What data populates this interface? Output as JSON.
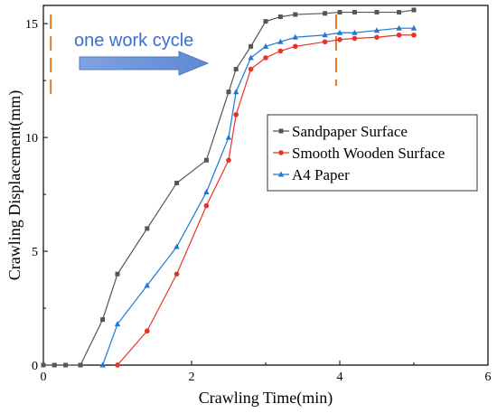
{
  "chart_data": {
    "type": "line",
    "xlabel": "Crawling Time(min)",
    "ylabel": "Crawling Displacement(mm)",
    "xlim": [
      0,
      6
    ],
    "ylim": [
      0,
      15.8
    ],
    "xticks": [
      0,
      2,
      4,
      6
    ],
    "yticks": [
      0,
      5,
      10,
      15
    ],
    "xtick_labels": [
      "0",
      "2",
      "4",
      "6"
    ],
    "ytick_labels": [
      "0",
      "5",
      "10",
      "15"
    ],
    "grid": false,
    "legend_position": "right",
    "series": [
      {
        "name": "Sandpaper Surface",
        "color": "#555555",
        "marker": "square",
        "x": [
          0,
          0.15,
          0.3,
          0.5,
          0.8,
          1.0,
          1.4,
          1.8,
          2.2,
          2.5,
          2.6,
          2.8,
          3.0,
          3.2,
          3.4,
          3.8,
          4.0,
          4.2,
          4.5,
          4.8,
          5.0
        ],
        "y": [
          0,
          0,
          0,
          0,
          2.0,
          4.0,
          6.0,
          8.0,
          9.0,
          12.0,
          13.0,
          14.0,
          15.1,
          15.3,
          15.4,
          15.45,
          15.5,
          15.5,
          15.5,
          15.5,
          15.6
        ]
      },
      {
        "name": "Smooth Wooden Surface",
        "color": "#e8332a",
        "marker": "circle",
        "x": [
          1.0,
          1.4,
          1.8,
          2.2,
          2.5,
          2.6,
          2.8,
          3.0,
          3.2,
          3.4,
          3.8,
          4.0,
          4.2,
          4.5,
          4.8,
          5.0
        ],
        "y": [
          0,
          1.5,
          4.0,
          7.0,
          9.0,
          11.0,
          13.0,
          13.5,
          13.8,
          14.0,
          14.2,
          14.3,
          14.35,
          14.4,
          14.5,
          14.5
        ]
      },
      {
        "name": "A4 Paper",
        "color": "#1f78d8",
        "marker": "triangle",
        "x": [
          0.8,
          1.0,
          1.4,
          1.8,
          2.2,
          2.5,
          2.6,
          2.8,
          3.0,
          3.2,
          3.4,
          3.8,
          4.0,
          4.2,
          4.5,
          4.8,
          5.0
        ],
        "y": [
          0,
          1.8,
          3.5,
          5.2,
          7.6,
          10.0,
          12.0,
          13.5,
          14.0,
          14.2,
          14.4,
          14.5,
          14.6,
          14.6,
          14.7,
          14.8,
          14.8
        ]
      }
    ],
    "annotations": {
      "cycle_label": "one work cycle",
      "cycle_label_color": "#3a6fd0",
      "arrow_color": "#6e95d8",
      "marker_color": "#e87722",
      "cycle_start_x": 0.1,
      "cycle_end_x": 3.95
    }
  }
}
